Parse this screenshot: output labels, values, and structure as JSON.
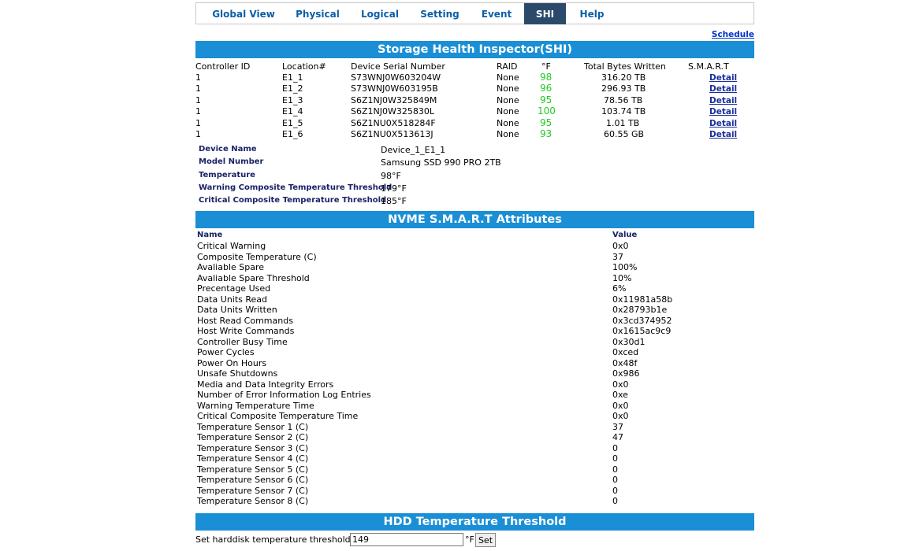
{
  "tabs": [
    {
      "label": "Global View"
    },
    {
      "label": "Physical"
    },
    {
      "label": "Logical"
    },
    {
      "label": "Setting"
    },
    {
      "label": "Event"
    },
    {
      "label": "SHI",
      "active": true
    },
    {
      "label": "Help"
    }
  ],
  "schedule_link": "Schedule",
  "shi": {
    "title": "Storage Health Inspector(SHI)",
    "columns": [
      "Controller ID",
      "Location#",
      "Device Serial Number",
      "RAID",
      "°F",
      "Total Bytes Written",
      "S.M.A.R.T"
    ],
    "rows": [
      {
        "controller": "1",
        "location": "E1_1",
        "serial": "S73WNJ0W603204W",
        "raid": "None",
        "temp": "98",
        "tbw": "316.20 TB",
        "smart": "Detail"
      },
      {
        "controller": "1",
        "location": "E1_2",
        "serial": "S73WNJ0W603195B",
        "raid": "None",
        "temp": "96",
        "tbw": "296.93 TB",
        "smart": "Detail"
      },
      {
        "controller": "1",
        "location": "E1_3",
        "serial": "S6Z1NJ0W325849M",
        "raid": "None",
        "temp": "95",
        "tbw": "78.56 TB",
        "smart": "Detail"
      },
      {
        "controller": "1",
        "location": "E1_4",
        "serial": "S6Z1NJ0W325830L",
        "raid": "None",
        "temp": "100",
        "tbw": "103.74 TB",
        "smart": "Detail"
      },
      {
        "controller": "1",
        "location": "E1_5",
        "serial": "S6Z1NU0X518284F",
        "raid": "None",
        "temp": "95",
        "tbw": "1.01 TB",
        "smart": "Detail"
      },
      {
        "controller": "1",
        "location": "E1_6",
        "serial": "S6Z1NU0X513613J",
        "raid": "None",
        "temp": "93",
        "tbw": "60.55 GB",
        "smart": "Detail"
      }
    ]
  },
  "device": [
    {
      "label": "Device Name",
      "value": "Device_1_E1_1"
    },
    {
      "label": "Model Number",
      "value": "Samsung SSD 990 PRO 2TB"
    },
    {
      "label": "Temperature",
      "value": "98°F"
    },
    {
      "label": "Warning Composite Temperature Threshold",
      "value": "179°F"
    },
    {
      "label": "Critical Composite Temperature Threshold",
      "value": "185°F"
    }
  ],
  "smart": {
    "title": "NVME S.M.A.R.T Attributes",
    "name_header": "Name",
    "value_header": "Value",
    "attributes": [
      {
        "name": "Critical Warning",
        "value": "0x0"
      },
      {
        "name": "Composite Temperature (C)",
        "value": "37"
      },
      {
        "name": "Avaliable Spare",
        "value": "100%"
      },
      {
        "name": "Avaliable Spare Threshold",
        "value": "10%"
      },
      {
        "name": "Precentage Used",
        "value": "6%"
      },
      {
        "name": "Data Units Read",
        "value": "0x11981a58b"
      },
      {
        "name": "Data Units Written",
        "value": "0x28793b1e"
      },
      {
        "name": "Host Read Commands",
        "value": "0x3cd374952"
      },
      {
        "name": "Host Write Commands",
        "value": "0x1615ac9c9"
      },
      {
        "name": "Controller Busy Time",
        "value": "0x30d1"
      },
      {
        "name": "Power Cycles",
        "value": "0xced"
      },
      {
        "name": "Power On Hours",
        "value": "0x48f"
      },
      {
        "name": "Unsafe Shutdowns",
        "value": "0x986"
      },
      {
        "name": "Media and Data Integrity Errors",
        "value": "0x0"
      },
      {
        "name": "Number of Error Information Log Entries",
        "value": "0xe"
      },
      {
        "name": "Warning Temperature Time",
        "value": "0x0"
      },
      {
        "name": "Critical Composite Temperature Time",
        "value": "0x0"
      },
      {
        "name": "Temperature Sensor 1 (C)",
        "value": "37"
      },
      {
        "name": "Temperature Sensor 2 (C)",
        "value": "47"
      },
      {
        "name": "Temperature Sensor 3 (C)",
        "value": "0"
      },
      {
        "name": "Temperature Sensor 4 (C)",
        "value": "0"
      },
      {
        "name": "Temperature Sensor 5 (C)",
        "value": "0"
      },
      {
        "name": "Temperature Sensor 6 (C)",
        "value": "0"
      },
      {
        "name": "Temperature Sensor 7 (C)",
        "value": "0"
      },
      {
        "name": "Temperature Sensor 8 (C)",
        "value": "0"
      }
    ]
  },
  "hdd_threshold": {
    "title": "HDD Temperature Threshold",
    "label": "Set harddisk temperature threshold :",
    "value": "149",
    "unit": "°F",
    "button": "Set"
  },
  "colors": {
    "banner": "#1a8fd6",
    "active_tab": "#2b4a6b",
    "tab_text": "#0b5ea8",
    "temp_ok": "#22cc22",
    "label_navy": "#1a2266"
  }
}
